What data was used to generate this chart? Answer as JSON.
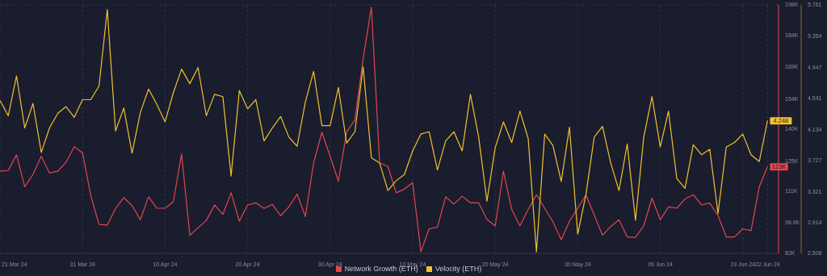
{
  "chart_data": {
    "type": "line",
    "x": [
      "--03-21",
      "--03-22",
      "--03-23",
      "--03-24",
      "--03-25",
      "--03-26",
      "--03-27",
      "--03-28",
      "--03-29",
      "--03-30",
      "--03-31",
      "--04-01",
      "--04-02",
      "--04-03",
      "--04-04",
      "--04-05",
      "--04-06",
      "--04-07",
      "--04-08",
      "--04-09",
      "--04-10",
      "--04-11",
      "--04-12",
      "--04-13",
      "--04-14",
      "--04-15",
      "--04-16",
      "--04-17",
      "--04-18",
      "--04-19",
      "--04-20",
      "--04-21",
      "--04-22",
      "--04-23",
      "--04-24",
      "--04-25",
      "--04-26",
      "--04-27",
      "--04-28",
      "--04-29",
      "--04-30",
      "--05-01",
      "--05-02",
      "--05-03",
      "--05-04",
      "--05-05",
      "--05-06",
      "--05-07",
      "--05-08",
      "--05-09",
      "--05-10",
      "--05-11",
      "--05-12",
      "--05-13",
      "--05-14",
      "--05-15",
      "--05-16",
      "--05-17",
      "--05-18",
      "--05-19",
      "--05-20",
      "--05-21",
      "--05-22",
      "--05-23",
      "--05-24",
      "--05-25",
      "--05-26",
      "--05-27",
      "--05-28",
      "--05-29",
      "--05-30",
      "--05-31",
      "--06-01",
      "--06-02",
      "--06-03",
      "--06-04",
      "--06-05",
      "--06-06",
      "--06-07",
      "--06-08",
      "--06-09",
      "--06-10",
      "--06-11",
      "--06-12",
      "--06-13",
      "--06-14",
      "--06-15",
      "--06-16",
      "--06-17",
      "--06-18",
      "--06-19",
      "--06-20",
      "--06-21",
      "--06-22"
    ],
    "series": [
      {
        "name": "Network Growth (ETH)",
        "color": "#e2474e",
        "values": [
          120400,
          120700,
          128000,
          113100,
          118900,
          127400,
          119500,
          120400,
          124500,
          131800,
          128900,
          109000,
          95500,
          95200,
          103000,
          108000,
          104300,
          97700,
          108400,
          103100,
          103100,
          106100,
          128400,
          90500,
          93900,
          97400,
          104600,
          100200,
          110300,
          97000,
          104600,
          105600,
          103000,
          104900,
          99600,
          103700,
          109700,
          99200,
          124200,
          138500,
          127400,
          115700,
          138700,
          144200,
          172900,
          196900,
          124300,
          122600,
          110300,
          112000,
          115000,
          82800,
          93500,
          94200,
          108400,
          105000,
          108700,
          105600,
          105600,
          97900,
          94800,
          120400,
          102500,
          94900,
          102500,
          109400,
          103100,
          96700,
          88400,
          97000,
          103100,
          109300,
          99900,
          90500,
          94500,
          97700,
          89700,
          89500,
          94900,
          107800,
          97700,
          103700,
          103100,
          107400,
          109400,
          104600,
          105500,
          99600,
          89700,
          89700,
          93500,
          92600,
          113100,
          122600
        ],
        "value_labels": [
          null,
          null,
          null,
          null,
          null,
          null,
          null,
          null,
          null,
          null,
          null,
          null,
          null,
          null,
          null,
          null,
          null,
          null,
          null,
          null,
          null,
          null,
          null,
          null,
          null,
          null,
          null,
          null,
          null,
          null,
          null,
          null,
          null,
          null,
          null,
          null,
          null,
          null,
          null,
          null,
          null,
          null,
          null,
          null,
          null,
          null,
          null,
          null,
          null,
          null,
          null,
          null,
          null,
          null,
          null,
          null,
          null,
          null,
          null,
          null,
          null,
          null,
          null,
          null,
          null,
          null,
          null,
          null,
          null,
          null,
          null,
          null,
          null,
          null,
          null,
          null,
          null,
          null,
          null,
          null,
          null,
          null,
          null,
          null,
          null,
          null,
          null,
          null,
          null,
          null,
          null,
          null,
          null,
          "123K"
        ]
      },
      {
        "name": "Velocity (ETH)",
        "color": "#f2c12e",
        "axis": "y2",
        "values": [
          4.51,
          4.31,
          4.83,
          4.15,
          4.47,
          3.83,
          4.15,
          4.34,
          4.43,
          4.29,
          4.52,
          4.52,
          4.7,
          5.7,
          4.11,
          4.41,
          3.82,
          4.35,
          4.66,
          4.46,
          4.23,
          4.61,
          4.92,
          4.73,
          4.94,
          4.31,
          4.59,
          4.56,
          3.52,
          4.64,
          4.4,
          4.52,
          3.98,
          4.15,
          4.3,
          4.03,
          3.91,
          4.49,
          4.89,
          4.18,
          4.18,
          4.68,
          3.95,
          4.1,
          4.95,
          3.76,
          3.69,
          3.33,
          3.46,
          3.54,
          3.85,
          4.07,
          4.1,
          3.6,
          3.98,
          4.1,
          3.85,
          4.59,
          4.03,
          3.19,
          3.89,
          4.23,
          3.96,
          4.37,
          4.01,
          2.53,
          4.07,
          3.92,
          3.45,
          4.16,
          2.76,
          3.28,
          4.03,
          4.17,
          3.69,
          3.33,
          3.94,
          2.94,
          4.03,
          4.56,
          3.9,
          4.37,
          3.49,
          3.36,
          3.93,
          3.8,
          3.87,
          3.03,
          3.9,
          3.96,
          4.07,
          3.8,
          3.71,
          4.248
        ],
        "value_labels": [
          null,
          null,
          null,
          null,
          null,
          null,
          null,
          null,
          null,
          null,
          null,
          null,
          null,
          null,
          null,
          null,
          null,
          null,
          null,
          null,
          null,
          null,
          null,
          null,
          null,
          null,
          null,
          null,
          null,
          null,
          null,
          null,
          null,
          null,
          null,
          null,
          null,
          null,
          null,
          null,
          null,
          null,
          null,
          null,
          null,
          null,
          null,
          null,
          null,
          null,
          null,
          null,
          null,
          null,
          null,
          null,
          null,
          null,
          null,
          null,
          null,
          null,
          null,
          null,
          null,
          null,
          null,
          null,
          null,
          null,
          null,
          null,
          null,
          null,
          null,
          null,
          null,
          null,
          null,
          null,
          null,
          null,
          null,
          null,
          null,
          null,
          null,
          null,
          null,
          null,
          null,
          null,
          null,
          "4.248"
        ]
      }
    ],
    "xlim": [
      "--03-21",
      "--06-23T08:00"
    ],
    "xticks": [
      {
        "value": "--03-21",
        "label": "21 Mar 24"
      },
      {
        "value": "--03-31",
        "label": "31 Mar 24"
      },
      {
        "value": "--04-10",
        "label": "10 Apr 24"
      },
      {
        "value": "--04-20",
        "label": "20 Apr 24"
      },
      {
        "value": "--04-30",
        "label": "30 Apr 24"
      },
      {
        "value": "--05-10",
        "label": "10 May 24"
      },
      {
        "value": "--05-20",
        "label": "20 May 24"
      },
      {
        "value": "--05-30",
        "label": "30 May 24"
      },
      {
        "value": "--06-09",
        "label": "09 Jun 24"
      },
      {
        "value": "--06-19",
        "label": "19 Jun 24"
      },
      {
        "value": "--06-22",
        "label": "22 Jun 24"
      }
    ],
    "ylim": [
      82000,
      198000
    ],
    "yticks": [
      {
        "value": 82000,
        "label": "82K"
      },
      {
        "value": 96600,
        "label": "96.6K"
      },
      {
        "value": 111000,
        "label": "111K"
      },
      {
        "value": 125000,
        "label": "125K"
      },
      {
        "value": 140000,
        "label": "140K"
      },
      {
        "value": 154000,
        "label": "154K"
      },
      {
        "value": 169000,
        "label": "169K"
      },
      {
        "value": 184000,
        "label": "184K"
      },
      {
        "value": 198000,
        "label": "198K"
      }
    ],
    "y2lim": [
      2.508,
      5.761
    ],
    "y2ticks": [
      2.508,
      2.914,
      3.321,
      3.727,
      4.134,
      4.541,
      4.947,
      5.354,
      5.761
    ],
    "grid": true,
    "legend": "bottom",
    "marker": "none",
    "line_style": "solid"
  }
}
